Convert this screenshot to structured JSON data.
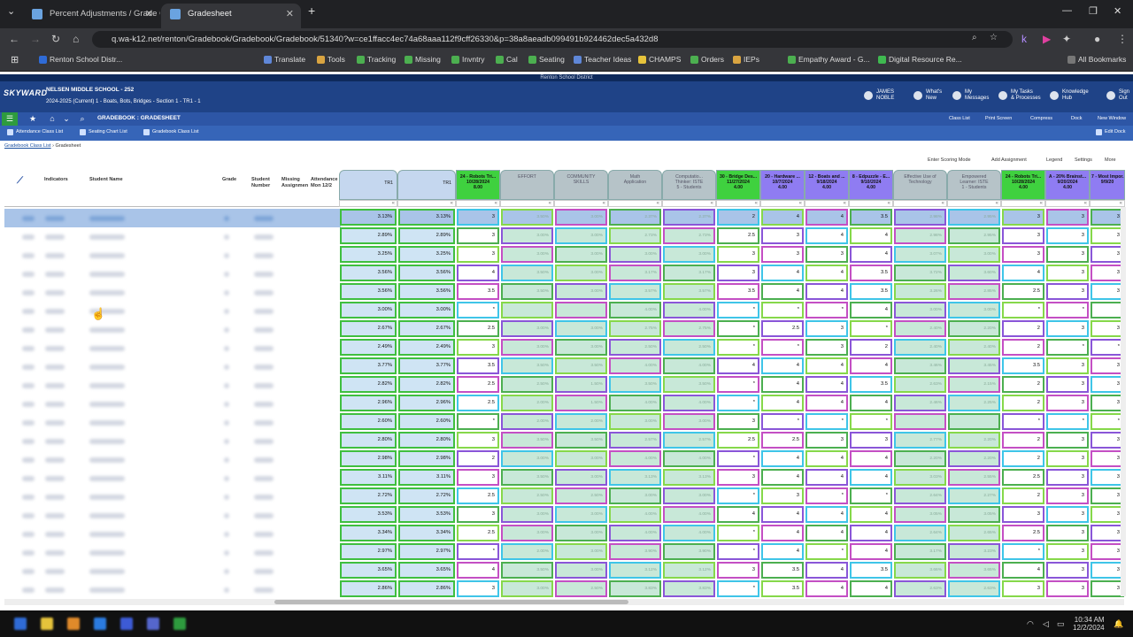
{
  "browser": {
    "tabs": [
      {
        "label": "Percent Adjustments / Grade Ca"
      },
      {
        "label": "Gradesheet"
      }
    ],
    "url": "q.wa-k12.net/renton/Gradebook/Gradebook/Gradebook/51340?w=ce1ffacc4ec74a68aaa112f9cff26330&p=38a8aeadb099491b924462dec5a432d8",
    "bookmarks": [
      "Renton School Distr...",
      "Translate",
      "Tools",
      "Tracking",
      "Missing",
      "Invntry",
      "Cal",
      "Seating",
      "Teacher Ideas",
      "CHAMPS",
      "Orders",
      "IEPs",
      "Empathy Award - G...",
      "Digital Resource Re...",
      "All Bookmarks"
    ]
  },
  "app": {
    "district": "Renton School District",
    "logo": "SKYWARD",
    "school": "NELSEN MIDDLE SCHOOL - 252",
    "session": "2024-2025 (Current)   1 - Boats, Bots, Bridges - Section 1 - TR1 - 1",
    "user": "JAMES\nNOBLE",
    "header_links": [
      "What's\nNew",
      "My\nMessages",
      "My Tasks\n& Processes",
      "Knowledge\nHub",
      "Sign\nOut"
    ],
    "page_title": "GRADEBOOK : GRADESHEET",
    "right_links": [
      "Class List",
      "Print Screen",
      "Compress",
      "Dock",
      "New Window"
    ],
    "sub_links": [
      "Attendance Class List",
      "Seating Chart List",
      "Gradebook Class List"
    ],
    "edit_dock": "Edit Dock",
    "breadcrumb": [
      "Gradebook Class List",
      "Gradesheet"
    ],
    "grid_tools": [
      "Enter Scoring Mode",
      "Add Assignment",
      "Legend",
      "Settings",
      "More"
    ]
  },
  "left_headers": [
    "Indicators",
    "Student Name",
    "Grade",
    "Student\nNumber",
    "Missing\nAssignmen",
    "Attendance\nMon 12/2"
  ],
  "columns": [
    {
      "label": "TR1",
      "kind": "tr",
      "w": 66
    },
    {
      "label": "TR1",
      "kind": "tr",
      "w": 66
    },
    {
      "label": "24 - Robots Tri...\n10/28/2024\n8.00",
      "kind": "green",
      "w": 50
    },
    {
      "label": "EFFORT",
      "kind": "cat",
      "w": 61
    },
    {
      "label": "COMMUNITY\nSKILLS",
      "kind": "cat",
      "w": 61
    },
    {
      "label": "Math\nApplication",
      "kind": "cat",
      "w": 61
    },
    {
      "label": "Computatio...\nThinker: ISTE\n5 - Students",
      "kind": "cat",
      "w": 61
    },
    {
      "label": "30 - Bridge Des...\n11/27/2024\n4.00",
      "kind": "green",
      "w": 50
    },
    {
      "label": "20 - Hardware ...\n10/7/2024\n4.00",
      "kind": "blue",
      "w": 50
    },
    {
      "label": "12 - Boats and ...\n9/18/2024\n4.00",
      "kind": "blue",
      "w": 50
    },
    {
      "label": "8 - Edpuzzle - E...\n9/10/2024\n4.00",
      "kind": "blue",
      "w": 50
    },
    {
      "label": "Effective Use of\nTechnology",
      "kind": "cat",
      "w": 61
    },
    {
      "label": "Empowered\nLearner: ISTE\n1 - Students",
      "kind": "cat",
      "w": 61
    },
    {
      "label": "24 - Robots Tri...\n10/28/2024\n4.00",
      "kind": "green",
      "w": 50
    },
    {
      "label": "A - 20% Brainst...\n9/20/2024\n4.00",
      "kind": "blue",
      "w": 50
    },
    {
      "label": "7 - Most Impor...\n9/9/20",
      "kind": "blue",
      "w": 40
    }
  ],
  "rows": [
    [
      "3.13%",
      "3.13%",
      "3",
      "3.50%",
      "3.00%",
      "2.37%",
      "2.37%",
      "2",
      "4",
      "4",
      "3.5",
      "2.98%",
      "2.95%",
      "3",
      "3",
      "3"
    ],
    [
      "2.89%",
      "2.89%",
      "3",
      "3.00%",
      "3.00%",
      "2.73%",
      "2.73%",
      "2.5",
      "3",
      "4",
      "4",
      "2.98%",
      "2.95%",
      "3",
      "3",
      "3"
    ],
    [
      "3.25%",
      "3.25%",
      "3",
      "3.00%",
      "3.00%",
      "3.00%",
      "3.00%",
      "3",
      "3",
      "3",
      "4",
      "3.07%",
      "3.00%",
      "3",
      "3",
      "3"
    ],
    [
      "3.56%",
      "3.56%",
      "4",
      "3.50%",
      "3.00%",
      "3.17%",
      "3.17%",
      "3",
      "4",
      "4",
      "3.5",
      "3.72%",
      "3.60%",
      "4",
      "3",
      "3"
    ],
    [
      "3.56%",
      "3.56%",
      "3.5",
      "3.50%",
      "3.00%",
      "3.57%",
      "3.57%",
      "3.5",
      "4",
      "4",
      "3.5",
      "3.26%",
      "2.85%",
      "2.5",
      "3",
      "3"
    ],
    [
      "3.00%",
      "3.00%",
      "*",
      "",
      "",
      "4.00%",
      "4.00%",
      "*",
      "*",
      "*",
      "4",
      "3.00%",
      "3.00%",
      "*",
      "*",
      ""
    ],
    [
      "2.67%",
      "2.67%",
      "2.5",
      "3.00%",
      "3.00%",
      "2.75%",
      "2.75%",
      "*",
      "2.5",
      "3",
      "*",
      "2.40%",
      "2.20%",
      "2",
      "3",
      "3"
    ],
    [
      "2.49%",
      "2.49%",
      "3",
      "3.00%",
      "3.00%",
      "2.50%",
      "2.50%",
      "*",
      "*",
      "3",
      "2",
      "2.40%",
      "2.40%",
      "2",
      "*",
      "*"
    ],
    [
      "3.77%",
      "3.77%",
      "3.5",
      "3.50%",
      "3.50%",
      "4.00%",
      "4.00%",
      "4",
      "4",
      "4",
      "4",
      "3.46%",
      "3.45%",
      "3.5",
      "3",
      "3"
    ],
    [
      "2.82%",
      "2.82%",
      "2.5",
      "2.50%",
      "1.50%",
      "3.50%",
      "3.50%",
      "*",
      "4",
      "4",
      "3.5",
      "2.63%",
      "2.15%",
      "2",
      "3",
      "3"
    ],
    [
      "2.96%",
      "2.96%",
      "2.5",
      "2.00%",
      "1.50%",
      "4.00%",
      "4.00%",
      "*",
      "4",
      "4",
      "4",
      "2.46%",
      "2.25%",
      "2",
      "3",
      "3"
    ],
    [
      "2.60%",
      "2.60%",
      "*",
      "2.00%",
      "2.00%",
      "3.00%",
      "3.00%",
      "3",
      "*",
      "*",
      "*",
      "",
      "",
      "*",
      "*",
      "*"
    ],
    [
      "2.80%",
      "2.80%",
      "3",
      "3.50%",
      "3.50%",
      "2.57%",
      "2.57%",
      "2.5",
      "2.5",
      "3",
      "3",
      "2.77%",
      "2.20%",
      "2",
      "3",
      "3"
    ],
    [
      "2.98%",
      "2.98%",
      "2",
      "3.00%",
      "3.00%",
      "4.00%",
      "4.00%",
      "*",
      "4",
      "4",
      "4",
      "2.20%",
      "2.20%",
      "2",
      "3",
      "3"
    ],
    [
      "3.11%",
      "3.11%",
      "3",
      "3.50%",
      "3.00%",
      "3.13%",
      "3.13%",
      "3",
      "4",
      "4",
      "4",
      "3.03%",
      "2.55%",
      "2.5",
      "3",
      "3"
    ],
    [
      "2.72%",
      "2.72%",
      "2.5",
      "2.50%",
      "2.50%",
      "3.00%",
      "3.00%",
      "*",
      "3",
      "*",
      "*",
      "2.64%",
      "2.27%",
      "2",
      "3",
      "3"
    ],
    [
      "3.53%",
      "3.53%",
      "3",
      "3.00%",
      "3.00%",
      "4.00%",
      "4.00%",
      "4",
      "4",
      "4",
      "4",
      "3.05%",
      "3.05%",
      "3",
      "3",
      "3"
    ],
    [
      "3.34%",
      "3.34%",
      "2.5",
      "3.00%",
      "3.00%",
      "4.00%",
      "4.00%",
      "*",
      "4",
      "4",
      "4",
      "2.64%",
      "2.65%",
      "2.5",
      "3",
      "3"
    ],
    [
      "2.97%",
      "2.97%",
      "*",
      "2.00%",
      "3.00%",
      "3.90%",
      "3.90%",
      "*",
      "4",
      "*",
      "4",
      "3.17%",
      "3.23%",
      "*",
      "3",
      "3"
    ],
    [
      "3.65%",
      "3.65%",
      "4",
      "3.50%",
      "3.00%",
      "3.12%",
      "3.12%",
      "3",
      "3.5",
      "4",
      "3.5",
      "3.66%",
      "3.65%",
      "4",
      "3",
      "3"
    ],
    [
      "2.86%",
      "2.86%",
      "3",
      "3.00%",
      "2.50%",
      "3.83%",
      "3.83%",
      "*",
      "3.5",
      "4",
      "4",
      "2.63%",
      "2.63%",
      "3",
      "3",
      "3"
    ]
  ],
  "taskbar": {
    "time": "10:34 AM",
    "date": "12/2/2024"
  }
}
